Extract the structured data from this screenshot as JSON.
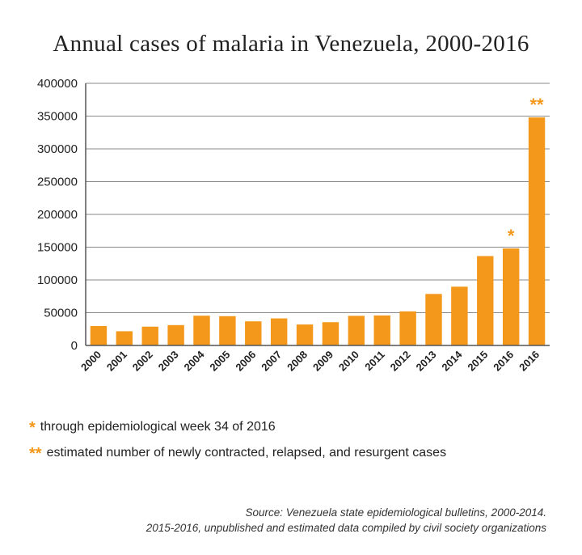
{
  "chart_data": {
    "type": "bar",
    "title": "Annual cases of malaria in Venezuela, 2000-2016",
    "xlabel": "",
    "ylabel": "",
    "categories": [
      "2000",
      "2001",
      "2002",
      "2003",
      "2004",
      "2005",
      "2006",
      "2007",
      "2008",
      "2009",
      "2010",
      "2011",
      "2012",
      "2013",
      "2014",
      "2015",
      "2016",
      "2016"
    ],
    "values": [
      29700,
      21700,
      28700,
      31100,
      45400,
      44700,
      36800,
      41300,
      32000,
      35500,
      45200,
      45800,
      52000,
      78600,
      89700,
      136400,
      148000,
      348000
    ],
    "bar_annotations": [
      "",
      "",
      "",
      "",
      "",
      "",
      "",
      "",
      "",
      "",
      "",
      "",
      "",
      "",
      "",
      "",
      "*",
      "**"
    ],
    "ylim": [
      0,
      400000
    ],
    "yticks": [
      "0",
      "50000",
      "100000",
      "150000",
      "200000",
      "250000",
      "300000",
      "350000",
      "400000"
    ],
    "grid": true,
    "bar_color": "#f4981c",
    "annotation_color": "#f4981c"
  },
  "legend": [
    {
      "mark": "*",
      "text": "through epidemiological week 34 of 2016"
    },
    {
      "mark": "**",
      "text": "estimated number of newly contracted, relapsed, and resurgent cases"
    }
  ],
  "source": {
    "line1": "Source: Venezuela state epidemiological bulletins, 2000-2014.",
    "line2": "2015-2016, unpublished and estimated data compiled by civil society organizations"
  }
}
